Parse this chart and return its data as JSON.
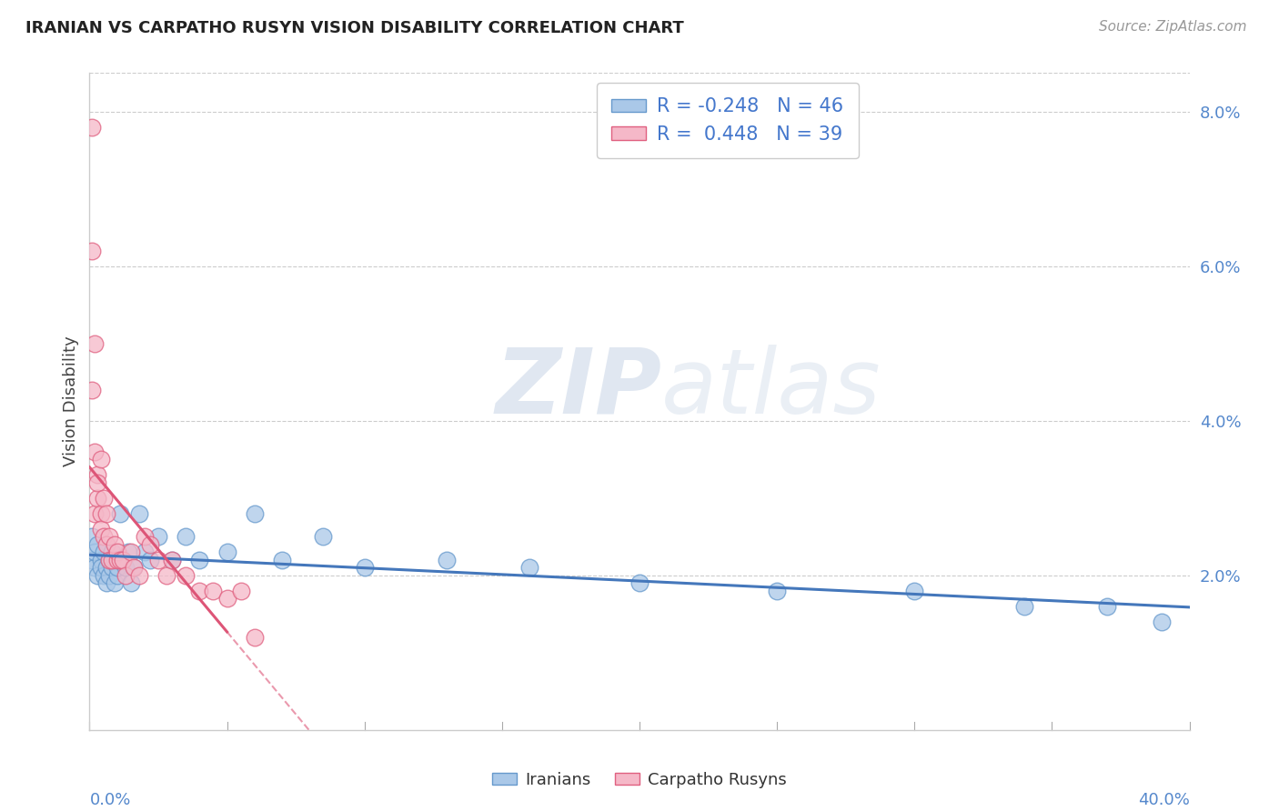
{
  "title": "IRANIAN VS CARPATHO RUSYN VISION DISABILITY CORRELATION CHART",
  "source": "Source: ZipAtlas.com",
  "ylabel": "Vision Disability",
  "xmin": 0.0,
  "xmax": 0.4,
  "ymin": 0.0,
  "ymax": 0.085,
  "ytick_vals": [
    0.02,
    0.04,
    0.06,
    0.08
  ],
  "ytick_labels": [
    "2.0%",
    "4.0%",
    "6.0%",
    "8.0%"
  ],
  "watermark_zip": "ZIP",
  "watermark_atlas": "atlas",
  "legend_text1": "R = -0.248   N = 46",
  "legend_text2": "R =  0.448   N = 39",
  "color_iranian_fill": "#aac8e8",
  "color_iranian_edge": "#6699cc",
  "color_carpatho_fill": "#f5b8c8",
  "color_carpatho_edge": "#e06080",
  "line_color_iranian": "#4477bb",
  "line_color_carpatho": "#dd5577",
  "iranians_x": [
    0.001,
    0.001,
    0.002,
    0.002,
    0.003,
    0.003,
    0.004,
    0.004,
    0.005,
    0.005,
    0.006,
    0.006,
    0.007,
    0.007,
    0.008,
    0.008,
    0.009,
    0.009,
    0.01,
    0.01,
    0.011,
    0.012,
    0.013,
    0.014,
    0.015,
    0.016,
    0.018,
    0.02,
    0.022,
    0.025,
    0.03,
    0.035,
    0.04,
    0.05,
    0.06,
    0.07,
    0.085,
    0.1,
    0.13,
    0.16,
    0.2,
    0.25,
    0.3,
    0.34,
    0.37,
    0.39
  ],
  "iranians_y": [
    0.022,
    0.025,
    0.021,
    0.023,
    0.02,
    0.024,
    0.022,
    0.021,
    0.023,
    0.02,
    0.021,
    0.019,
    0.022,
    0.02,
    0.021,
    0.023,
    0.019,
    0.022,
    0.02,
    0.021,
    0.028,
    0.022,
    0.021,
    0.023,
    0.019,
    0.021,
    0.028,
    0.023,
    0.022,
    0.025,
    0.022,
    0.025,
    0.022,
    0.023,
    0.028,
    0.022,
    0.025,
    0.021,
    0.022,
    0.021,
    0.019,
    0.018,
    0.018,
    0.016,
    0.016,
    0.014
  ],
  "carpatho_x": [
    0.001,
    0.001,
    0.001,
    0.002,
    0.002,
    0.002,
    0.003,
    0.003,
    0.003,
    0.004,
    0.004,
    0.004,
    0.005,
    0.005,
    0.006,
    0.006,
    0.007,
    0.007,
    0.008,
    0.009,
    0.01,
    0.01,
    0.011,
    0.012,
    0.013,
    0.015,
    0.016,
    0.018,
    0.02,
    0.022,
    0.025,
    0.028,
    0.03,
    0.035,
    0.04,
    0.045,
    0.05,
    0.055,
    0.06
  ],
  "carpatho_y": [
    0.078,
    0.062,
    0.044,
    0.05,
    0.036,
    0.028,
    0.033,
    0.03,
    0.032,
    0.028,
    0.026,
    0.035,
    0.03,
    0.025,
    0.024,
    0.028,
    0.025,
    0.022,
    0.022,
    0.024,
    0.022,
    0.023,
    0.022,
    0.022,
    0.02,
    0.023,
    0.021,
    0.02,
    0.025,
    0.024,
    0.022,
    0.02,
    0.022,
    0.02,
    0.018,
    0.018,
    0.017,
    0.018,
    0.012
  ]
}
